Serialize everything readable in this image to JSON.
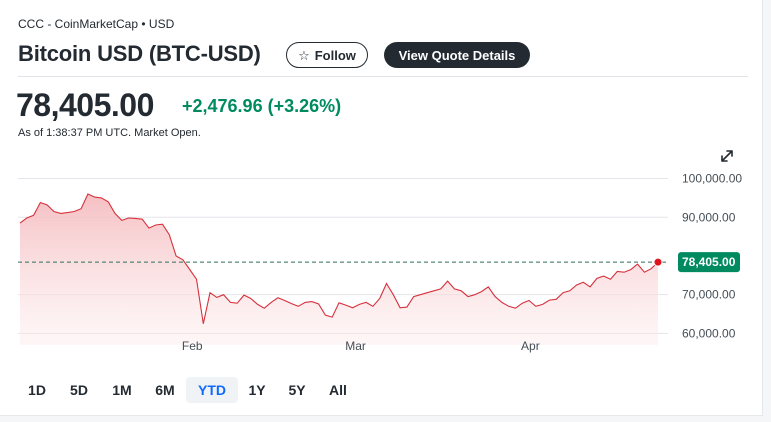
{
  "header": {
    "source": "CCC - CoinMarketCap • USD",
    "title": "Bitcoin USD (BTC-USD)",
    "follow_label": "Follow",
    "view_quote_label": "View Quote Details"
  },
  "quote": {
    "price": "78,405.00",
    "change": "+2,476.96 (+3.26%)",
    "as_of": "As of 1:38:37 PM UTC. Market Open."
  },
  "icons": {
    "follow": "star-outline-icon",
    "expand": "expand-arrows-icon"
  },
  "colors": {
    "positive": "#008a5f",
    "line": "#d6313c",
    "marker": "#e1141e",
    "price_label_bg": "#008a5f"
  },
  "range_tabs": [
    "1D",
    "5D",
    "1M",
    "6M",
    "YTD",
    "1Y",
    "5Y",
    "All"
  ],
  "active_range": "YTD",
  "chart_data": {
    "type": "area",
    "x_tick_labels": [
      "Feb",
      "Mar",
      "Apr"
    ],
    "y_tick_labels": [
      "100,000.00",
      "90,000.00",
      "70,000.00",
      "60,000.00"
    ],
    "y_ticks": [
      100000,
      90000,
      70000,
      60000
    ],
    "ylim": [
      57000,
      103500
    ],
    "current_price_label": "78,405.00",
    "current_price": 78405,
    "reference_line": 78405,
    "grid": "horizontal",
    "series": [
      {
        "values": [
          88500,
          89800,
          90500,
          93800,
          93200,
          91500,
          91000,
          91200,
          91500,
          92200,
          96000,
          95200,
          95000,
          94000,
          91000,
          89200,
          89800,
          89700,
          89500,
          87200,
          88000,
          88200,
          85500,
          80000,
          79000,
          76500,
          74000,
          62500,
          70500,
          69300,
          70000,
          68000,
          67800,
          69900,
          69000,
          67500,
          66500,
          68000,
          69200,
          68500,
          67700,
          67000,
          68000,
          68200,
          67600,
          64700,
          64200,
          67900,
          67300,
          66600,
          67500,
          68000,
          67000,
          69000,
          72900,
          70000,
          66600,
          66800,
          69500,
          70000,
          70500,
          71000,
          71500,
          73500,
          71500,
          71000,
          69500,
          70000,
          70800,
          72000,
          69500,
          68000,
          67000,
          66500,
          67800,
          68500,
          67000,
          67500,
          68600,
          68800,
          70500,
          71000,
          72500,
          73200,
          72000,
          74200,
          74800,
          74000,
          76000,
          75800,
          76500,
          77900,
          75800,
          76700,
          78405
        ]
      }
    ]
  }
}
